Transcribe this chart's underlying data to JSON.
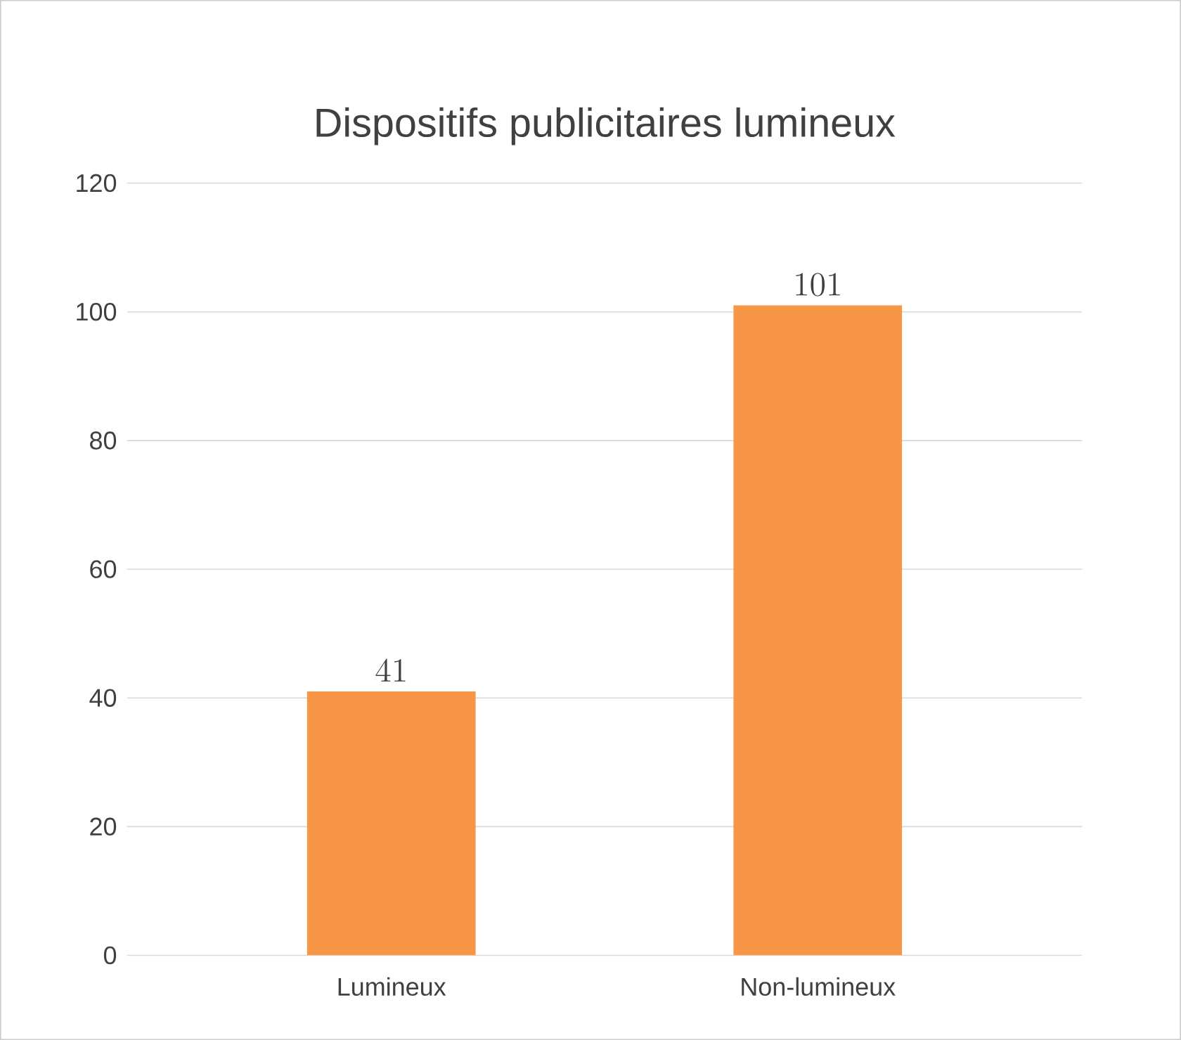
{
  "chart_data": {
    "type": "bar",
    "title": "Dispositifs publicitaires lumineux",
    "categories": [
      "Lumineux",
      "Non-lumineux"
    ],
    "values": [
      41,
      101
    ],
    "color": "#f79646",
    "ylim": [
      0,
      120
    ],
    "yticks": [
      0,
      20,
      40,
      60,
      80,
      100,
      120
    ],
    "grid": "y",
    "data_labels": true
  }
}
